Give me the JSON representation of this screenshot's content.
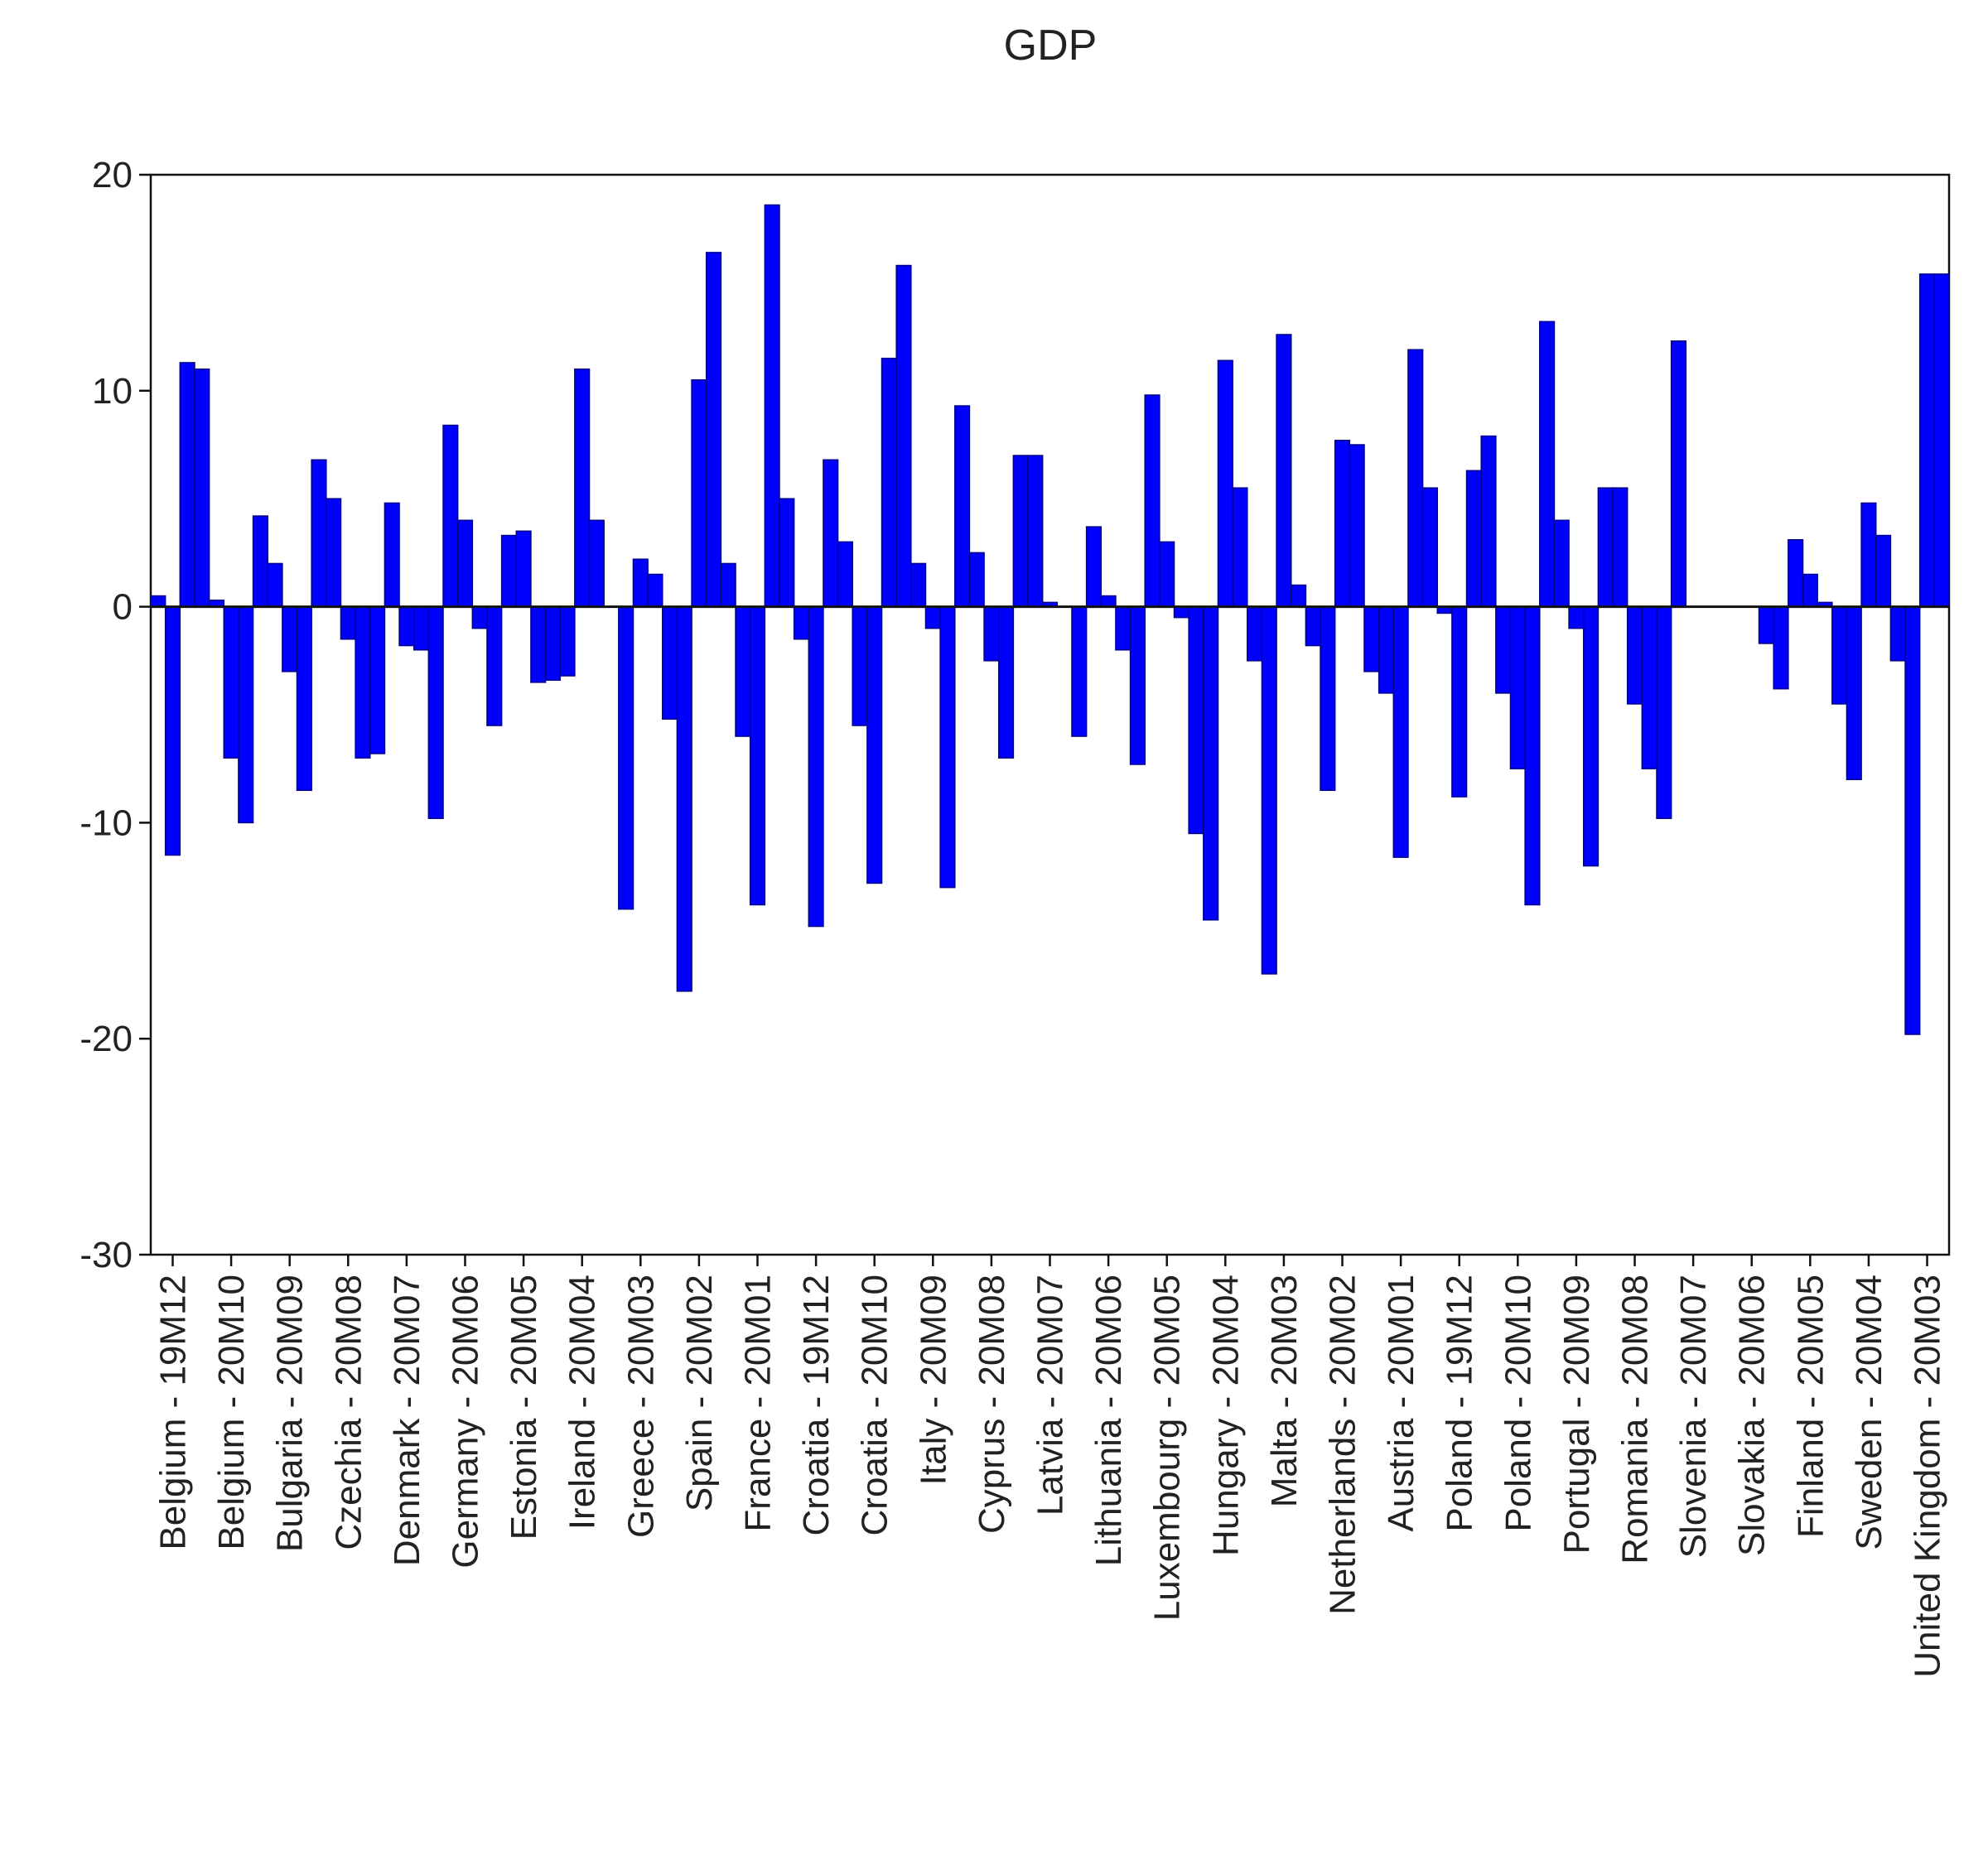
{
  "chart_data": {
    "type": "bar",
    "title": "GDP",
    "color": "#0000ff",
    "categories": [
      null,
      "Belgium - 19M12",
      null,
      null,
      null,
      "Belgium - 20M10",
      null,
      null,
      null,
      "Bulgaria - 20M09",
      null,
      null,
      null,
      "Czechia - 20M08",
      null,
      null,
      null,
      "Denmark - 20M07",
      null,
      null,
      null,
      "Germany - 20M06",
      null,
      null,
      null,
      "Estonia - 20M05",
      null,
      null,
      null,
      "Ireland - 20M04",
      null,
      null,
      null,
      "Greece - 20M03",
      null,
      null,
      null,
      "Spain - 20M02",
      null,
      null,
      null,
      "France - 20M01",
      null,
      null,
      null,
      "Croatia - 19M12",
      null,
      null,
      null,
      "Croatia - 20M10",
      null,
      null,
      null,
      "Italy - 20M09",
      null,
      null,
      null,
      "Cyprus - 20M08",
      null,
      null,
      null,
      "Latvia - 20M07",
      null,
      null,
      null,
      "Lithuania - 20M06",
      null,
      null,
      null,
      "Luxembourg - 20M05",
      null,
      null,
      null,
      "Hungary - 20M04",
      null,
      null,
      null,
      "Malta - 20M03",
      null,
      null,
      null,
      "Netherlands - 20M02",
      null,
      null,
      null,
      "Austria - 20M01",
      null,
      null,
      null,
      "Poland - 19M12",
      null,
      null,
      null,
      "Poland - 20M10",
      null,
      null,
      null,
      "Portugal - 20M09",
      null,
      null,
      null,
      "Romania - 20M08",
      null,
      null,
      null,
      "Slovenia - 20M07",
      null,
      null,
      null,
      "Slovakia - 20M06",
      null,
      null,
      null,
      "Finland - 20M05",
      null,
      null,
      null,
      "Sweden - 20M04",
      null,
      null,
      null,
      "United Kingdom - 20M03",
      null
    ],
    "values": [
      0.5,
      -11.5,
      11.3,
      11,
      0.3,
      -7,
      -10,
      4.2,
      2,
      -3,
      -8.5,
      6.8,
      5,
      -1.5,
      -7,
      -6.8,
      4.8,
      -1.8,
      -2,
      -9.8,
      8.4,
      4,
      -1,
      -5.5,
      3.3,
      3.5,
      -3.5,
      -3.4,
      -3.2,
      11,
      4,
      0,
      -14,
      2.2,
      1.5,
      -5.2,
      -17.8,
      10.5,
      16.4,
      2,
      -6,
      -13.8,
      18.6,
      5,
      -1.5,
      -14.8,
      6.8,
      3,
      -5.5,
      -12.8,
      11.5,
      15.8,
      2,
      -1,
      -13,
      9.3,
      2.5,
      -2.5,
      -7,
      7,
      7,
      0.2,
      0,
      -6,
      3.7,
      0.5,
      -2,
      -7.3,
      9.8,
      3,
      -0.5,
      -10.5,
      -14.5,
      11.4,
      5.5,
      -2.5,
      -17,
      12.6,
      1,
      -1.8,
      -8.5,
      7.7,
      7.5,
      -3,
      -4,
      -11.6,
      11.9,
      5.5,
      -0.3,
      -8.8,
      6.3,
      7.9,
      -4,
      -7.5,
      -13.8,
      13.2,
      4,
      -1,
      -12,
      5.5,
      5.5,
      -4.5,
      -7.5,
      -9.8,
      12.3,
      null,
      null,
      null,
      null,
      null,
      -1.7,
      -3.8,
      3.1,
      1.5,
      0.2,
      -4.5,
      -8,
      4.8,
      3.3,
      -2.5,
      -19.8,
      15.4,
      15.4
    ],
    "ylim": [
      -30,
      20
    ],
    "yticks": [
      -30,
      -20,
      -10,
      0,
      10,
      20
    ]
  }
}
